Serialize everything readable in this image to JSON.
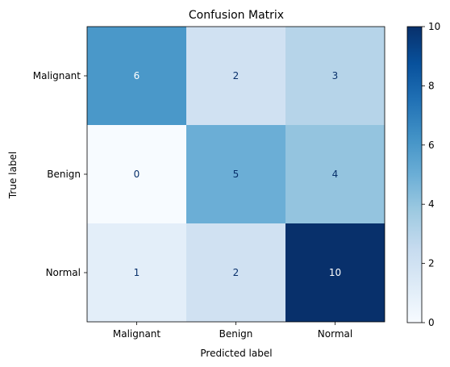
{
  "chart_data": {
    "type": "heatmap",
    "title": "Confusion Matrix",
    "xlabel": "Predicted label",
    "ylabel": "True label",
    "x_categories": [
      "Malignant",
      "Benign",
      "Normal"
    ],
    "y_categories": [
      "Malignant",
      "Benign",
      "Normal"
    ],
    "values": [
      [
        6,
        2,
        3
      ],
      [
        0,
        5,
        4
      ],
      [
        1,
        2,
        10
      ]
    ],
    "colormap": "Blues",
    "colorbar": {
      "range": [
        0,
        10
      ],
      "ticks": [
        "0",
        "2",
        "4",
        "6",
        "8",
        "10"
      ]
    },
    "colors": {
      "low": "#f7fbff",
      "high": "#08306b",
      "text_dark": "#08306b",
      "text_light": "#ffffff"
    }
  }
}
